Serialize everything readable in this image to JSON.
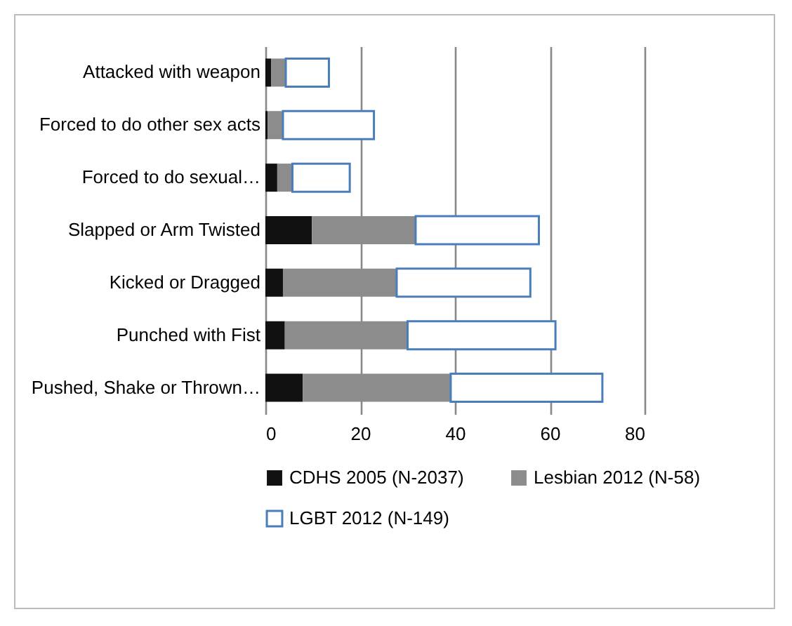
{
  "chart_data": {
    "type": "bar",
    "orientation": "horizontal",
    "stacked": true,
    "categories": [
      "Attacked with weapon",
      "Forced to do other sex acts",
      "Forced to do sexual…",
      "Slapped or Arm Twisted",
      "Kicked or Dragged",
      "Punched with Fist",
      "Pushed, Shake or Thrown…"
    ],
    "series": [
      {
        "name": "CDHS 2005 (N-2037)",
        "color": "#111111",
        "values": [
          1.2,
          0.5,
          2.5,
          9.8,
          3.7,
          4.1,
          7.9
        ]
      },
      {
        "name": "Lesbian 2012 (N-58)",
        "color": "#8c8c8c",
        "values": [
          3.1,
          3.2,
          3.2,
          21.9,
          24,
          25.9,
          31.2
        ]
      },
      {
        "name": "LGBT 2012 (N-149)",
        "color": "#4a7ebb",
        "values": [
          9.1,
          19.2,
          12.1,
          26,
          28.2,
          31.2,
          32
        ]
      }
    ],
    "xlim": [
      0,
      80
    ],
    "xticks": [
      0,
      20,
      40,
      60,
      80
    ],
    "grid": "x",
    "legend": "bottom"
  }
}
